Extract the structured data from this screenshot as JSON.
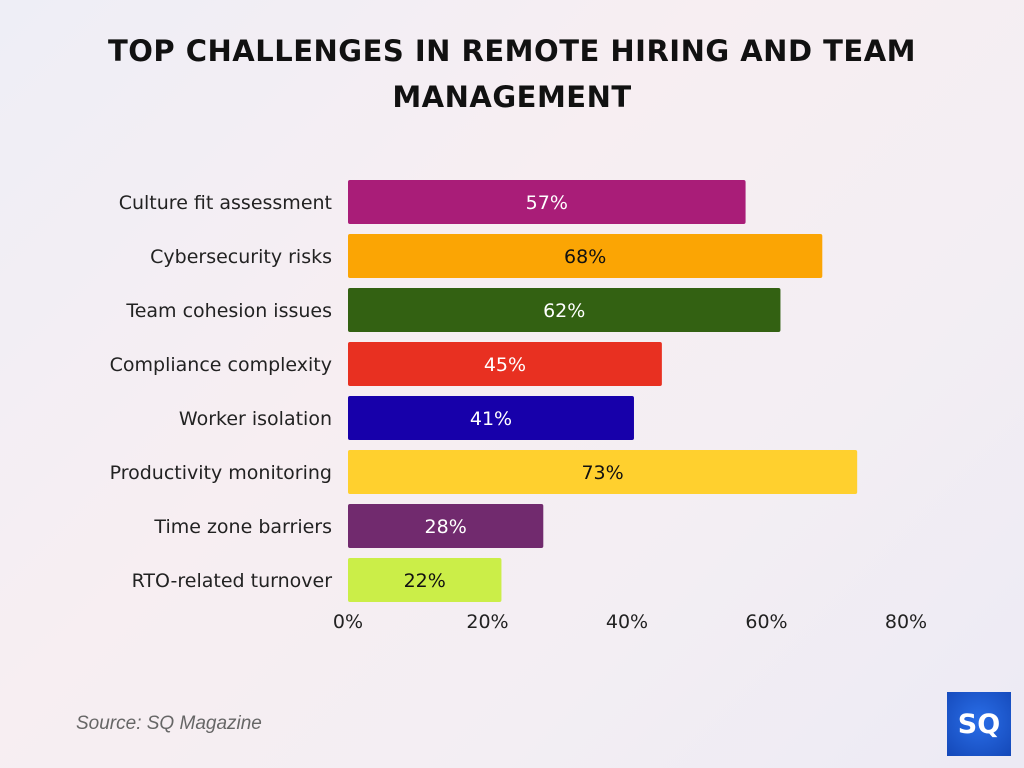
{
  "chart_data": {
    "type": "bar",
    "orientation": "horizontal",
    "title": "TOP CHALLENGES IN REMOTE HIRING AND TEAM MANAGEMENT",
    "categories": [
      "Culture fit assessment",
      "Cybersecurity risks",
      "Team cohesion issues",
      "Compliance complexity",
      "Worker isolation",
      "Productivity monitoring",
      "Time zone barriers",
      "RTO-related turnover"
    ],
    "values": [
      57,
      68,
      62,
      45,
      41,
      73,
      28,
      22
    ],
    "data_labels": [
      "57%",
      "68%",
      "62%",
      "45%",
      "41%",
      "73%",
      "28%",
      "22%"
    ],
    "colors": [
      "#a91d78",
      "#fba504",
      "#336112",
      "#e83021",
      "#1700aa",
      "#ffd02e",
      "#712a6e",
      "#cbee48"
    ],
    "label_colors": [
      "#ffffff",
      "#111111",
      "#ffffff",
      "#ffffff",
      "#ffffff",
      "#111111",
      "#ffffff",
      "#111111"
    ],
    "xlim": [
      0,
      80
    ],
    "xticks": [
      0,
      20,
      40,
      60,
      80
    ],
    "xtick_labels": [
      "0%",
      "20%",
      "40%",
      "60%",
      "80%"
    ],
    "grid": false,
    "legend": "none"
  },
  "source": "Source: SQ Magazine",
  "logo": {
    "text": "SQ",
    "color": "#1a56cc"
  }
}
